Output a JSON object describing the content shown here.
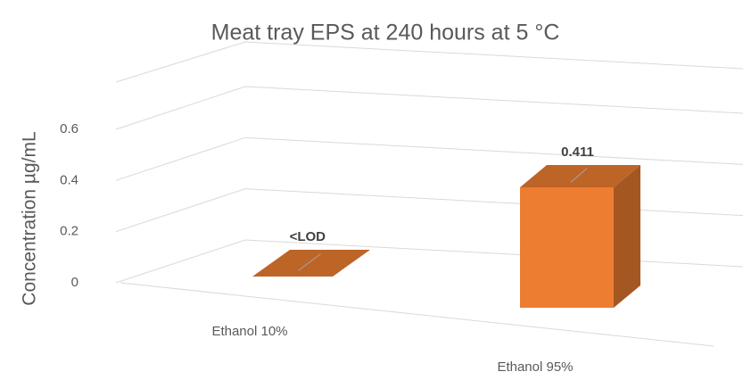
{
  "chart_data": {
    "type": "bar3d",
    "title": "Meat tray EPS at 240 hours at 5 °C",
    "y_label": "Concentration µg/mL",
    "categories": [
      "Ethanol 10%",
      "Ethanol 95%"
    ],
    "values": [
      0,
      0.411
    ],
    "value_labels": [
      "<LOD",
      "0.411"
    ],
    "color": "#ed7d31",
    "ylim": [
      0,
      0.6
    ],
    "yticks": [
      0,
      0.2,
      0.4,
      0.6
    ],
    "grid": true
  }
}
